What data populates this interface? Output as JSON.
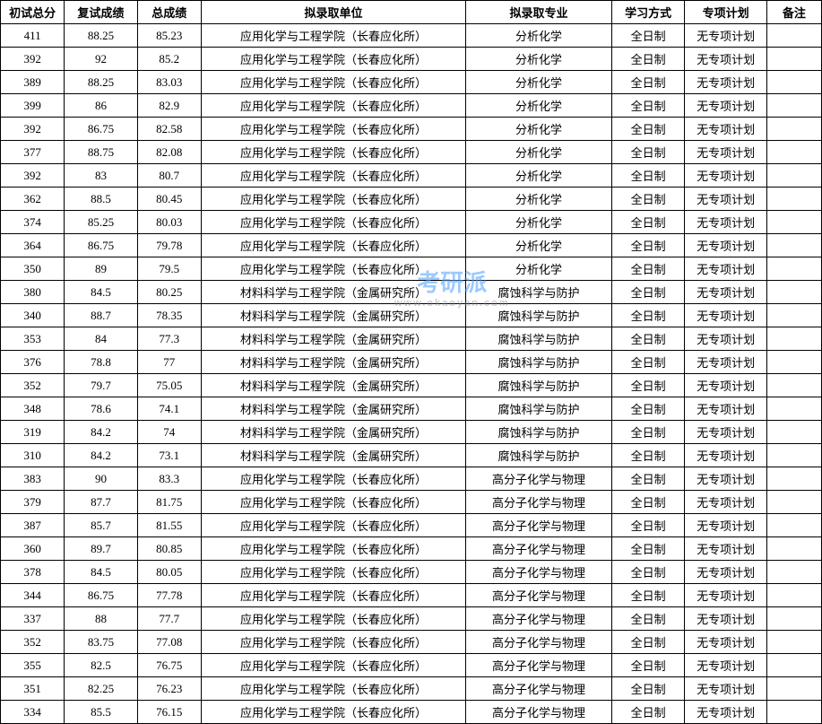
{
  "watermark": {
    "main": "考研派",
    "sub": "www.okaoyan.com"
  },
  "headers": [
    "初试总分",
    "复试成绩",
    "总成绩",
    "拟录取单位",
    "拟录取专业",
    "学习方式",
    "专项计划",
    "备注"
  ],
  "colors": {
    "border": "#000000",
    "background": "#ffffff",
    "watermark": "#4da0ff"
  },
  "rows": [
    {
      "initial": "411",
      "interview": "88.25",
      "total": "85.23",
      "dept": "应用化学与工程学院（长春应化所）",
      "major": "分析化学",
      "study": "全日制",
      "plan": "无专项计划",
      "remark": ""
    },
    {
      "initial": "392",
      "interview": "92",
      "total": "85.2",
      "dept": "应用化学与工程学院（长春应化所）",
      "major": "分析化学",
      "study": "全日制",
      "plan": "无专项计划",
      "remark": ""
    },
    {
      "initial": "389",
      "interview": "88.25",
      "total": "83.03",
      "dept": "应用化学与工程学院（长春应化所）",
      "major": "分析化学",
      "study": "全日制",
      "plan": "无专项计划",
      "remark": ""
    },
    {
      "initial": "399",
      "interview": "86",
      "total": "82.9",
      "dept": "应用化学与工程学院（长春应化所）",
      "major": "分析化学",
      "study": "全日制",
      "plan": "无专项计划",
      "remark": ""
    },
    {
      "initial": "392",
      "interview": "86.75",
      "total": "82.58",
      "dept": "应用化学与工程学院（长春应化所）",
      "major": "分析化学",
      "study": "全日制",
      "plan": "无专项计划",
      "remark": ""
    },
    {
      "initial": "377",
      "interview": "88.75",
      "total": "82.08",
      "dept": "应用化学与工程学院（长春应化所）",
      "major": "分析化学",
      "study": "全日制",
      "plan": "无专项计划",
      "remark": ""
    },
    {
      "initial": "392",
      "interview": "83",
      "total": "80.7",
      "dept": "应用化学与工程学院（长春应化所）",
      "major": "分析化学",
      "study": "全日制",
      "plan": "无专项计划",
      "remark": ""
    },
    {
      "initial": "362",
      "interview": "88.5",
      "total": "80.45",
      "dept": "应用化学与工程学院（长春应化所）",
      "major": "分析化学",
      "study": "全日制",
      "plan": "无专项计划",
      "remark": ""
    },
    {
      "initial": "374",
      "interview": "85.25",
      "total": "80.03",
      "dept": "应用化学与工程学院（长春应化所）",
      "major": "分析化学",
      "study": "全日制",
      "plan": "无专项计划",
      "remark": ""
    },
    {
      "initial": "364",
      "interview": "86.75",
      "total": "79.78",
      "dept": "应用化学与工程学院（长春应化所）",
      "major": "分析化学",
      "study": "全日制",
      "plan": "无专项计划",
      "remark": ""
    },
    {
      "initial": "350",
      "interview": "89",
      "total": "79.5",
      "dept": "应用化学与工程学院（长春应化所）",
      "major": "分析化学",
      "study": "全日制",
      "plan": "无专项计划",
      "remark": ""
    },
    {
      "initial": "380",
      "interview": "84.5",
      "total": "80.25",
      "dept": "材料科学与工程学院（金属研究所）",
      "major": "腐蚀科学与防护",
      "study": "全日制",
      "plan": "无专项计划",
      "remark": ""
    },
    {
      "initial": "340",
      "interview": "88.7",
      "total": "78.35",
      "dept": "材料科学与工程学院（金属研究所）",
      "major": "腐蚀科学与防护",
      "study": "全日制",
      "plan": "无专项计划",
      "remark": ""
    },
    {
      "initial": "353",
      "interview": "84",
      "total": "77.3",
      "dept": "材料科学与工程学院（金属研究所）",
      "major": "腐蚀科学与防护",
      "study": "全日制",
      "plan": "无专项计划",
      "remark": ""
    },
    {
      "initial": "376",
      "interview": "78.8",
      "total": "77",
      "dept": "材料科学与工程学院（金属研究所）",
      "major": "腐蚀科学与防护",
      "study": "全日制",
      "plan": "无专项计划",
      "remark": ""
    },
    {
      "initial": "352",
      "interview": "79.7",
      "total": "75.05",
      "dept": "材料科学与工程学院（金属研究所）",
      "major": "腐蚀科学与防护",
      "study": "全日制",
      "plan": "无专项计划",
      "remark": ""
    },
    {
      "initial": "348",
      "interview": "78.6",
      "total": "74.1",
      "dept": "材料科学与工程学院（金属研究所）",
      "major": "腐蚀科学与防护",
      "study": "全日制",
      "plan": "无专项计划",
      "remark": ""
    },
    {
      "initial": "319",
      "interview": "84.2",
      "total": "74",
      "dept": "材料科学与工程学院（金属研究所）",
      "major": "腐蚀科学与防护",
      "study": "全日制",
      "plan": "无专项计划",
      "remark": ""
    },
    {
      "initial": "310",
      "interview": "84.2",
      "total": "73.1",
      "dept": "材料科学与工程学院（金属研究所）",
      "major": "腐蚀科学与防护",
      "study": "全日制",
      "plan": "无专项计划",
      "remark": ""
    },
    {
      "initial": "383",
      "interview": "90",
      "total": "83.3",
      "dept": "应用化学与工程学院（长春应化所）",
      "major": "高分子化学与物理",
      "study": "全日制",
      "plan": "无专项计划",
      "remark": ""
    },
    {
      "initial": "379",
      "interview": "87.7",
      "total": "81.75",
      "dept": "应用化学与工程学院（长春应化所）",
      "major": "高分子化学与物理",
      "study": "全日制",
      "plan": "无专项计划",
      "remark": ""
    },
    {
      "initial": "387",
      "interview": "85.7",
      "total": "81.55",
      "dept": "应用化学与工程学院（长春应化所）",
      "major": "高分子化学与物理",
      "study": "全日制",
      "plan": "无专项计划",
      "remark": ""
    },
    {
      "initial": "360",
      "interview": "89.7",
      "total": "80.85",
      "dept": "应用化学与工程学院（长春应化所）",
      "major": "高分子化学与物理",
      "study": "全日制",
      "plan": "无专项计划",
      "remark": ""
    },
    {
      "initial": "378",
      "interview": "84.5",
      "total": "80.05",
      "dept": "应用化学与工程学院（长春应化所）",
      "major": "高分子化学与物理",
      "study": "全日制",
      "plan": "无专项计划",
      "remark": ""
    },
    {
      "initial": "344",
      "interview": "86.75",
      "total": "77.78",
      "dept": "应用化学与工程学院（长春应化所）",
      "major": "高分子化学与物理",
      "study": "全日制",
      "plan": "无专项计划",
      "remark": ""
    },
    {
      "initial": "337",
      "interview": "88",
      "total": "77.7",
      "dept": "应用化学与工程学院（长春应化所）",
      "major": "高分子化学与物理",
      "study": "全日制",
      "plan": "无专项计划",
      "remark": ""
    },
    {
      "initial": "352",
      "interview": "83.75",
      "total": "77.08",
      "dept": "应用化学与工程学院（长春应化所）",
      "major": "高分子化学与物理",
      "study": "全日制",
      "plan": "无专项计划",
      "remark": ""
    },
    {
      "initial": "355",
      "interview": "82.5",
      "total": "76.75",
      "dept": "应用化学与工程学院（长春应化所）",
      "major": "高分子化学与物理",
      "study": "全日制",
      "plan": "无专项计划",
      "remark": ""
    },
    {
      "initial": "351",
      "interview": "82.25",
      "total": "76.23",
      "dept": "应用化学与工程学院（长春应化所）",
      "major": "高分子化学与物理",
      "study": "全日制",
      "plan": "无专项计划",
      "remark": ""
    },
    {
      "initial": "334",
      "interview": "85.5",
      "total": "76.15",
      "dept": "应用化学与工程学院（长春应化所）",
      "major": "高分子化学与物理",
      "study": "全日制",
      "plan": "无专项计划",
      "remark": ""
    }
  ]
}
